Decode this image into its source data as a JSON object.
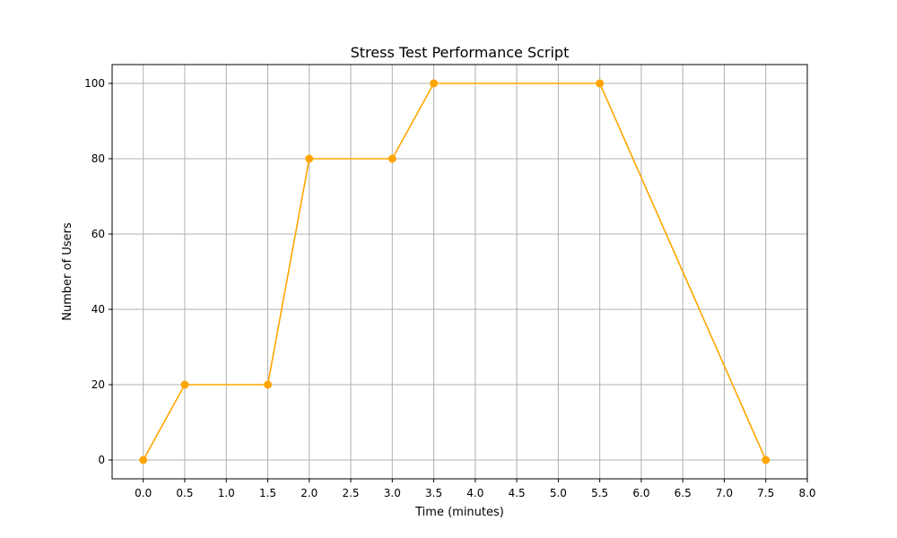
{
  "chart_data": {
    "type": "line",
    "title": "Stress Test Performance Script",
    "xlabel": "Time (minutes)",
    "ylabel": "Number of Users",
    "xlim": [
      -0.375,
      8.0
    ],
    "ylim": [
      -5,
      105
    ],
    "xticks": [
      "0.0",
      "0.5",
      "1.0",
      "1.5",
      "2.0",
      "2.5",
      "3.0",
      "3.5",
      "4.0",
      "4.5",
      "5.0",
      "5.5",
      "6.0",
      "6.5",
      "7.0",
      "7.5",
      "8.0"
    ],
    "yticks": [
      "0",
      "20",
      "40",
      "60",
      "80",
      "100"
    ],
    "grid": true,
    "color": "#ffa500",
    "series": [
      {
        "x": [
          0.0,
          0.5,
          1.5,
          2.0,
          3.0,
          3.5,
          5.5,
          7.5
        ],
        "y": [
          0,
          20,
          20,
          80,
          80,
          100,
          100,
          0
        ]
      }
    ]
  }
}
